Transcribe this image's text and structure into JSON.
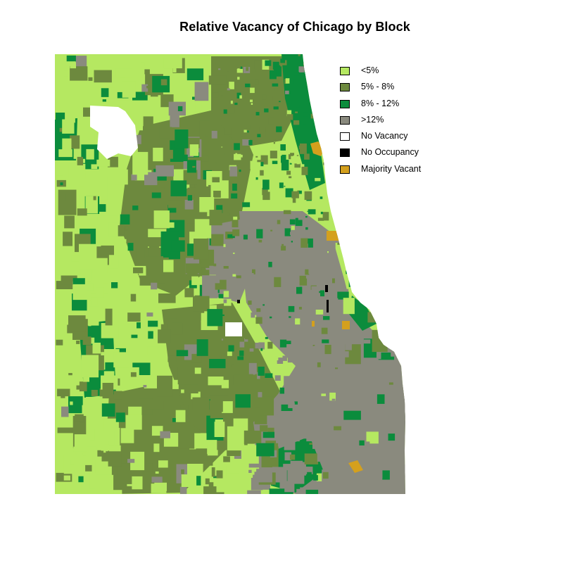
{
  "title": "Relative Vacancy of Chicago by Block",
  "legend": {
    "items": [
      {
        "label": "<5%",
        "color": "#b5e861"
      },
      {
        "label": "5% - 8%",
        "color": "#6d893e"
      },
      {
        "label": "8% - 12%",
        "color": "#0b8c3c"
      },
      {
        "label": ">12%",
        "color": "#8a8a7e"
      },
      {
        "label": "No Vacancy",
        "color": "#ffffff"
      },
      {
        "label": "No Occupancy",
        "color": "#000000"
      },
      {
        "label": "Majority Vacant",
        "color": "#d4a01d"
      }
    ]
  }
}
